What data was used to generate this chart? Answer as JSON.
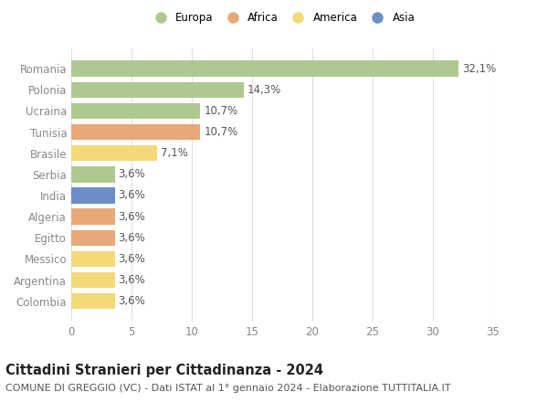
{
  "countries": [
    "Romania",
    "Polonia",
    "Ucraina",
    "Tunisia",
    "Brasile",
    "Serbia",
    "India",
    "Algeria",
    "Egitto",
    "Messico",
    "Argentina",
    "Colombia"
  ],
  "values": [
    32.1,
    14.3,
    10.7,
    10.7,
    7.1,
    3.6,
    3.6,
    3.6,
    3.6,
    3.6,
    3.6,
    3.6
  ],
  "labels": [
    "32,1%",
    "14,3%",
    "10,7%",
    "10,7%",
    "7,1%",
    "3,6%",
    "3,6%",
    "3,6%",
    "3,6%",
    "3,6%",
    "3,6%",
    "3,6%"
  ],
  "categories": [
    "Europa",
    "Africa",
    "America",
    "Asia"
  ],
  "colors": {
    "Romania": "#adc990",
    "Polonia": "#adc990",
    "Ucraina": "#adc990",
    "Tunisia": "#e8a878",
    "Brasile": "#f5d878",
    "Serbia": "#adc990",
    "India": "#6b8ec8",
    "Algeria": "#e8a878",
    "Egitto": "#e8a878",
    "Messico": "#f5d878",
    "Argentina": "#f5d878",
    "Colombia": "#f5d878"
  },
  "legend_colors": {
    "Europa": "#adc990",
    "Africa": "#e8a878",
    "America": "#f5d878",
    "Asia": "#6b8ec8"
  },
  "xlim": [
    0,
    35
  ],
  "xticks": [
    0,
    5,
    10,
    15,
    20,
    25,
    30,
    35
  ],
  "title": "Cittadini Stranieri per Cittadinanza - 2024",
  "subtitle": "COMUNE DI GREGGIO (VC) - Dati ISTAT al 1° gennaio 2024 - Elaborazione TUTTITALIA.IT",
  "background_color": "#ffffff",
  "grid_color": "#e0e0e0",
  "bar_height": 0.75,
  "label_fontsize": 8.5,
  "title_fontsize": 10.5,
  "subtitle_fontsize": 8.0
}
